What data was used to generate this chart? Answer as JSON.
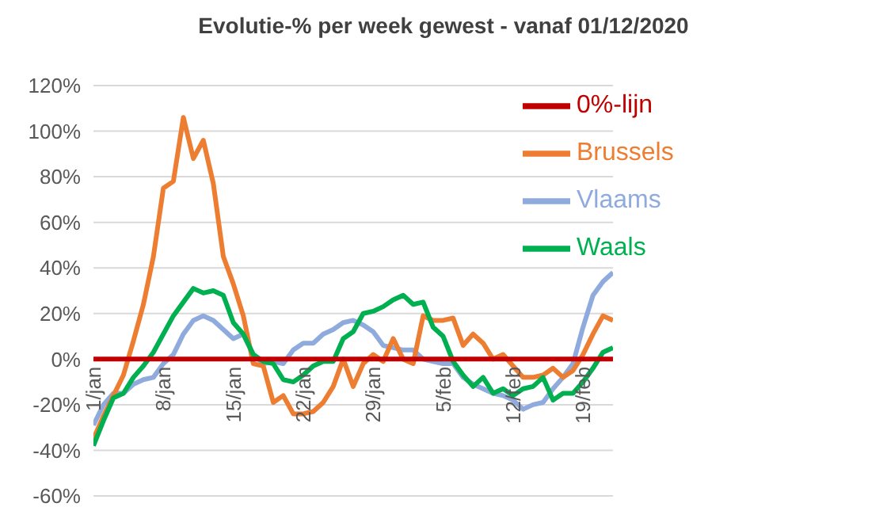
{
  "chart_data": {
    "type": "line",
    "title": "Evolutie-% per week gewest - vanaf 01/12/2020",
    "categories": [
      "1/jan",
      null,
      null,
      null,
      null,
      null,
      null,
      "8/jan",
      null,
      null,
      null,
      null,
      null,
      null,
      "15/jan",
      null,
      null,
      null,
      null,
      null,
      null,
      "22/jan",
      null,
      null,
      null,
      null,
      null,
      null,
      "29/jan",
      null,
      null,
      null,
      null,
      null,
      null,
      "5/feb",
      null,
      null,
      null,
      null,
      null,
      null,
      "12/feb",
      null,
      null,
      null,
      null,
      null,
      null,
      "19/feb",
      null,
      null,
      null
    ],
    "series": [
      {
        "name": "Vlaams",
        "color": "#8faadc",
        "values": [
          -29,
          -20,
          -15,
          -15,
          -11,
          -9,
          -8,
          -2,
          2,
          11,
          17,
          19,
          17,
          13,
          9,
          11,
          2,
          -2,
          -1,
          -2,
          4,
          7,
          7,
          11,
          13,
          16,
          17,
          15,
          12,
          6,
          5,
          4,
          4,
          0,
          -1,
          -2,
          -2,
          -8,
          -11,
          -13,
          -15,
          -16,
          -18,
          -22,
          -20,
          -19,
          -13,
          -8,
          -2,
          14,
          28,
          34,
          38
        ]
      },
      {
        "name": "Brussels",
        "color": "#ed7d31",
        "values": [
          -35,
          -25,
          -16,
          -7,
          8,
          24,
          45,
          75,
          78,
          106,
          88,
          96,
          77,
          45,
          33,
          19,
          -2,
          -3,
          -19,
          -16,
          -24,
          -24,
          -23,
          -19,
          -12,
          0,
          -12,
          -2,
          2,
          -1,
          9,
          0,
          -2,
          19,
          17,
          17,
          18,
          6,
          11,
          7,
          0,
          2,
          -3,
          -8,
          -8,
          -7,
          -4,
          -8,
          -5,
          2,
          11,
          19,
          17
        ]
      },
      {
        "name": "Waals",
        "color": "#00b050",
        "values": [
          -38,
          -27,
          -17,
          -15,
          -8,
          -3,
          3,
          11,
          19,
          25,
          31,
          29,
          30,
          28,
          16,
          11,
          2,
          -1,
          -2,
          -9,
          -10,
          -7,
          -3,
          -1,
          -1,
          9,
          12,
          20,
          21,
          23,
          26,
          28,
          24,
          25,
          14,
          10,
          -1,
          -7,
          -12,
          -8,
          -15,
          -13,
          -16,
          -13,
          -12,
          -8,
          -18,
          -15,
          -15,
          -10,
          -4,
          3,
          5
        ]
      },
      {
        "name": "0%-lijn",
        "color": "#c00000",
        "values": [
          0,
          0,
          0,
          0,
          0,
          0,
          0,
          0,
          0,
          0,
          0,
          0,
          0,
          0,
          0,
          0,
          0,
          0,
          0,
          0,
          0,
          0,
          0,
          0,
          0,
          0,
          0,
          0,
          0,
          0,
          0,
          0,
          0,
          0,
          0,
          0,
          0,
          0,
          0,
          0,
          0,
          0,
          0,
          0,
          0,
          0,
          0,
          0,
          0,
          0,
          0,
          0,
          0
        ]
      }
    ],
    "ylim": [
      -60,
      120
    ],
    "yticks": [
      {
        "value": -60,
        "label": "-60%"
      },
      {
        "value": -40,
        "label": "-40%"
      },
      {
        "value": -20,
        "label": "-20%"
      },
      {
        "value": 0,
        "label": "0%"
      },
      {
        "value": 20,
        "label": "20%"
      },
      {
        "value": 40,
        "label": "40%"
      },
      {
        "value": 60,
        "label": "60%"
      },
      {
        "value": 80,
        "label": "80%"
      },
      {
        "value": 100,
        "label": "100%"
      },
      {
        "value": 120,
        "label": "120%"
      }
    ],
    "grid": "y",
    "legend": "top right",
    "marker": "none",
    "line_style": "solid"
  }
}
